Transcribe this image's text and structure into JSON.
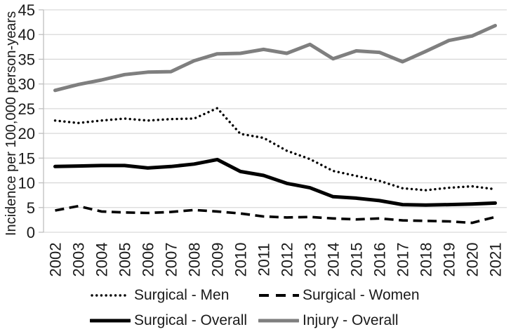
{
  "chart_data": {
    "type": "line",
    "title": "",
    "xlabel": "",
    "ylabel": "Incidence per 100,000 person-years",
    "ylim": [
      0,
      45
    ],
    "ytick_step": 5,
    "grid": "horizontal",
    "legend_position": "bottom",
    "categories": [
      "2002",
      "2003",
      "2004",
      "2005",
      "2006",
      "2007",
      "2008",
      "2009",
      "2010",
      "2011",
      "2012",
      "2013",
      "2014",
      "2015",
      "2016",
      "2017",
      "2018",
      "2019",
      "2020",
      "2021"
    ],
    "series": [
      {
        "name": "Surgical - Men",
        "style": "dotted",
        "color": "#000000",
        "values": [
          22.6,
          22.1,
          22.6,
          23.0,
          22.6,
          22.9,
          23.0,
          25.1,
          19.9,
          19.1,
          16.5,
          14.8,
          12.4,
          11.4,
          10.4,
          8.9,
          8.5,
          9.0,
          9.3,
          8.7
        ]
      },
      {
        "name": "Surgical - Women",
        "style": "dashed",
        "color": "#000000",
        "values": [
          4.4,
          5.3,
          4.2,
          4.0,
          3.9,
          4.1,
          4.5,
          4.2,
          3.8,
          3.2,
          3.0,
          3.1,
          2.8,
          2.6,
          2.8,
          2.4,
          2.3,
          2.2,
          1.9,
          3.1
        ]
      },
      {
        "name": "Surgical - Overall",
        "style": "solid",
        "color": "#000000",
        "values": [
          13.3,
          13.4,
          13.5,
          13.5,
          13.0,
          13.3,
          13.8,
          14.7,
          12.3,
          11.5,
          9.9,
          9.0,
          7.2,
          6.9,
          6.4,
          5.6,
          5.5,
          5.6,
          5.7,
          5.9
        ]
      },
      {
        "name": "Injury - Overall",
        "style": "solid",
        "color": "#7f7f7f",
        "values": [
          28.7,
          29.9,
          30.8,
          31.9,
          32.4,
          32.5,
          34.7,
          36.1,
          36.2,
          37.0,
          36.2,
          38.0,
          35.1,
          36.7,
          36.4,
          34.5,
          36.6,
          38.8,
          39.7,
          41.8
        ]
      }
    ],
    "colors": {
      "grid": "#d9d9d9",
      "axis": "#bfbfbf",
      "text": "#1a1a1a"
    }
  }
}
